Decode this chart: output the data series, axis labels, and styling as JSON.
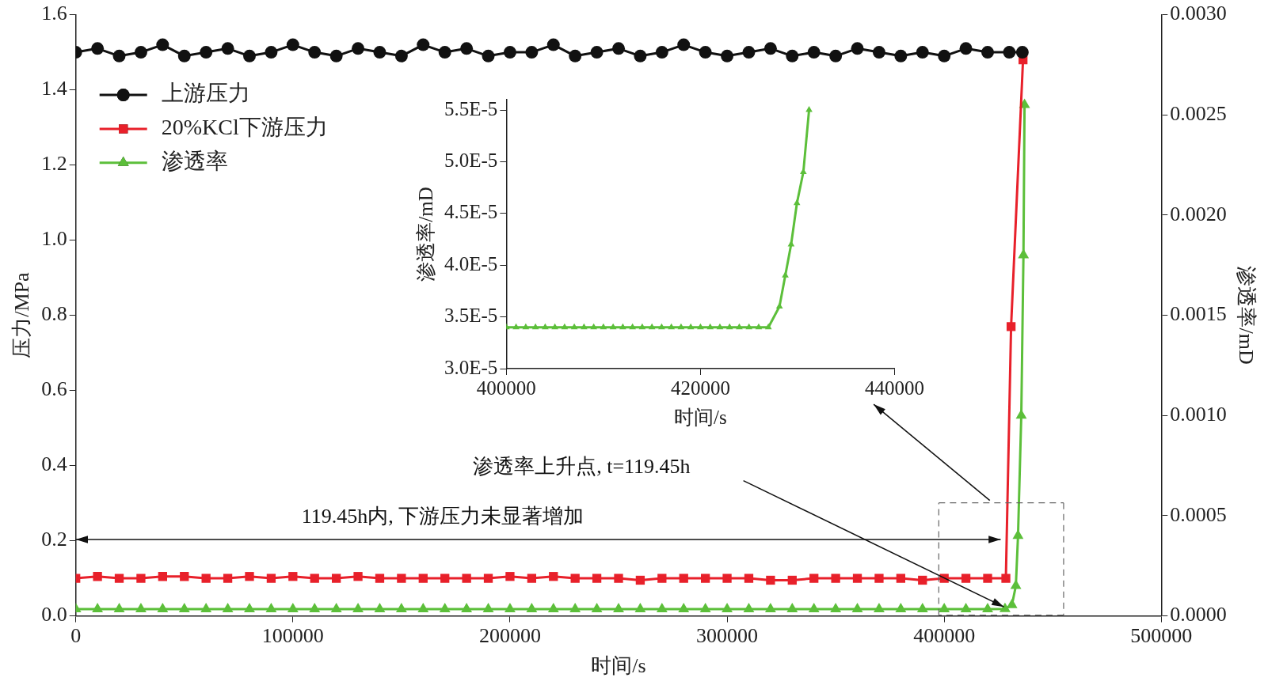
{
  "chart_data": [
    {
      "type": "line",
      "xlabel": "时间/s",
      "ylabel": "压力/MPa",
      "y2label": "渗透率/mD",
      "legend": "top left",
      "xlim": [
        0,
        500000
      ],
      "xticks": [
        0,
        100000,
        200000,
        300000,
        400000,
        500000
      ],
      "ylim": [
        0,
        1.6
      ],
      "yticks": [
        {
          "value": 0,
          "label": "0.0"
        },
        {
          "value": 0.2,
          "label": "0.2"
        },
        {
          "value": 0.4,
          "label": "0.4"
        },
        {
          "value": 0.6,
          "label": "0.6"
        },
        {
          "value": 0.8,
          "label": "0.8"
        },
        {
          "value": 1.0,
          "label": "1.0"
        },
        {
          "value": 1.2,
          "label": "1.2"
        },
        {
          "value": 1.4,
          "label": "1.4"
        },
        {
          "value": 1.6,
          "label": "1.6"
        }
      ],
      "y2lim": [
        0,
        0.003
      ],
      "y2ticks": [
        {
          "value": 0,
          "label": "0.0000"
        },
        {
          "value": 0.0005,
          "label": "0.0005"
        },
        {
          "value": 0.001,
          "label": "0.0010"
        },
        {
          "value": 0.0015,
          "label": "0.0015"
        },
        {
          "value": 0.002,
          "label": "0.0020"
        },
        {
          "value": 0.0025,
          "label": "0.0025"
        },
        {
          "value": 0.003,
          "label": "0.0030"
        }
      ],
      "annotations": [
        "渗透率上升点, t=119.45h",
        "119.45h内, 下游压力未显著增加"
      ],
      "series": [
        {
          "name": "上游压力",
          "color": "#111111",
          "marker": "circle",
          "x": [
            0,
            10000,
            20000,
            30000,
            40000,
            50000,
            60000,
            70000,
            80000,
            90000,
            100000,
            110000,
            120000,
            130000,
            140000,
            150000,
            160000,
            170000,
            180000,
            190000,
            200000,
            210000,
            220000,
            230000,
            240000,
            250000,
            260000,
            270000,
            280000,
            290000,
            300000,
            310000,
            320000,
            330000,
            340000,
            350000,
            360000,
            370000,
            380000,
            390000,
            400000,
            410000,
            420000,
            430000,
            436000
          ],
          "values": [
            1.5,
            1.51,
            1.49,
            1.5,
            1.52,
            1.49,
            1.5,
            1.51,
            1.49,
            1.5,
            1.52,
            1.5,
            1.49,
            1.51,
            1.5,
            1.49,
            1.52,
            1.5,
            1.51,
            1.49,
            1.5,
            1.5,
            1.52,
            1.49,
            1.5,
            1.51,
            1.49,
            1.5,
            1.52,
            1.5,
            1.49,
            1.5,
            1.51,
            1.49,
            1.5,
            1.49,
            1.51,
            1.5,
            1.49,
            1.5,
            1.49,
            1.51,
            1.5,
            1.5,
            1.5
          ]
        },
        {
          "name": "20%KCl下游压力",
          "color": "#e8202a",
          "marker": "square",
          "x": [
            0,
            10000,
            20000,
            30000,
            40000,
            50000,
            60000,
            70000,
            80000,
            90000,
            100000,
            110000,
            120000,
            130000,
            140000,
            150000,
            160000,
            170000,
            180000,
            190000,
            200000,
            210000,
            220000,
            230000,
            240000,
            250000,
            260000,
            270000,
            280000,
            290000,
            300000,
            310000,
            320000,
            330000,
            340000,
            350000,
            360000,
            370000,
            380000,
            390000,
            400000,
            410000,
            420000,
            428400,
            430800,
            436300
          ],
          "values": [
            0.1,
            0.105,
            0.1,
            0.1,
            0.105,
            0.105,
            0.1,
            0.1,
            0.105,
            0.1,
            0.105,
            0.1,
            0.1,
            0.105,
            0.1,
            0.1,
            0.1,
            0.1,
            0.1,
            0.1,
            0.105,
            0.1,
            0.105,
            0.1,
            0.1,
            0.1,
            0.095,
            0.1,
            0.1,
            0.1,
            0.1,
            0.1,
            0.095,
            0.095,
            0.1,
            0.1,
            0.1,
            0.1,
            0.1,
            0.095,
            0.1,
            0.1,
            0.1,
            0.1,
            0.77,
            1.48
          ]
        },
        {
          "name": "渗透率",
          "color": "#5cbf3a",
          "marker": "triangle",
          "axis": "y2",
          "x": [
            0,
            10000,
            20000,
            30000,
            40000,
            50000,
            60000,
            70000,
            80000,
            90000,
            100000,
            110000,
            120000,
            130000,
            140000,
            150000,
            160000,
            170000,
            180000,
            190000,
            200000,
            210000,
            220000,
            230000,
            240000,
            250000,
            260000,
            270000,
            280000,
            290000,
            300000,
            310000,
            320000,
            330000,
            340000,
            350000,
            360000,
            370000,
            380000,
            390000,
            400000,
            410000,
            420000,
            428000,
            431200,
            433000,
            434000,
            435500,
            436500,
            437000
          ],
          "values": [
            3.4e-05,
            3.4e-05,
            3.4e-05,
            3.4e-05,
            3.4e-05,
            3.4e-05,
            3.4e-05,
            3.4e-05,
            3.4e-05,
            3.4e-05,
            3.4e-05,
            3.4e-05,
            3.4e-05,
            3.4e-05,
            3.4e-05,
            3.4e-05,
            3.4e-05,
            3.4e-05,
            3.4e-05,
            3.4e-05,
            3.4e-05,
            3.4e-05,
            3.4e-05,
            3.4e-05,
            3.4e-05,
            3.4e-05,
            3.4e-05,
            3.4e-05,
            3.4e-05,
            3.4e-05,
            3.4e-05,
            3.4e-05,
            3.4e-05,
            3.4e-05,
            3.4e-05,
            3.4e-05,
            3.4e-05,
            3.4e-05,
            3.4e-05,
            3.4e-05,
            3.4e-05,
            3.4e-05,
            3.4e-05,
            3.5e-05,
            5.5e-05,
            0.00015,
            0.0004,
            0.001,
            0.0018,
            0.00255
          ]
        }
      ]
    },
    {
      "type": "line",
      "xlabel": "时间/s",
      "ylabel": "渗透率/mD",
      "marker": "triangle",
      "xlim": [
        400000,
        440000
      ],
      "xticks": [
        400000,
        420000,
        440000
      ],
      "ylim": [
        3e-05,
        5.6e-05
      ],
      "yticks": [
        {
          "value": 3e-05,
          "label": "3.0E-5"
        },
        {
          "value": 3.5e-05,
          "label": "3.5E-5"
        },
        {
          "value": 4e-05,
          "label": "4.0E-5"
        },
        {
          "value": 4.5e-05,
          "label": "4.5E-5"
        },
        {
          "value": 5e-05,
          "label": "5.0E-5"
        },
        {
          "value": 5.5e-05,
          "label": "5.5E-5"
        }
      ],
      "series": [
        {
          "color": "#5cbf3a",
          "x": [
            400000,
            401000,
            402000,
            403000,
            404000,
            405000,
            406000,
            407000,
            408000,
            409000,
            410000,
            411000,
            412000,
            413000,
            414000,
            415000,
            416000,
            417000,
            418000,
            419000,
            420000,
            421000,
            422000,
            423000,
            424000,
            425000,
            426000,
            427000,
            428140,
            428740,
            429340,
            429940,
            430600,
            431190
          ],
          "values": [
            3.4e-05,
            3.4e-05,
            3.4e-05,
            3.4e-05,
            3.4e-05,
            3.4e-05,
            3.4e-05,
            3.4e-05,
            3.4e-05,
            3.4e-05,
            3.4e-05,
            3.4e-05,
            3.4e-05,
            3.4e-05,
            3.4e-05,
            3.4e-05,
            3.4e-05,
            3.4e-05,
            3.4e-05,
            3.4e-05,
            3.4e-05,
            3.4e-05,
            3.4e-05,
            3.4e-05,
            3.4e-05,
            3.4e-05,
            3.4e-05,
            3.4e-05,
            3.6e-05,
            3.9e-05,
            4.2e-05,
            4.6e-05,
            4.9e-05,
            5.5e-05
          ]
        }
      ]
    }
  ]
}
